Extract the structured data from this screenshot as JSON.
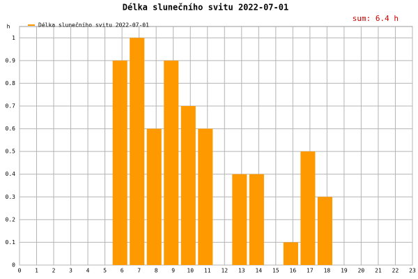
{
  "chart_data": {
    "type": "bar",
    "title": "Délka slunečního svitu 2022-07-01",
    "annotation": "sum: 6.4 h",
    "y_label": "h",
    "x": [
      6,
      7,
      8,
      9,
      10,
      11,
      13,
      14,
      16,
      17,
      18
    ],
    "series": [
      {
        "name": "Délka slunečního svitu 2022-07-01",
        "color": "#ff9900",
        "values": [
          0.9,
          1,
          0.6,
          0.9,
          0.7,
          0.6,
          0.4,
          0.4,
          0.1,
          0.5,
          0.3
        ]
      }
    ],
    "xlim": [
      0,
      23
    ],
    "xticks": [
      0,
      1,
      2,
      3,
      4,
      5,
      6,
      7,
      8,
      9,
      10,
      11,
      12,
      13,
      14,
      15,
      16,
      17,
      18,
      19,
      20,
      21,
      22,
      23
    ],
    "ylim": [
      0,
      1.05
    ],
    "yticks": [
      0,
      0.1,
      0.2,
      0.3,
      0.4,
      0.5,
      0.6,
      0.7,
      0.8,
      0.9,
      1
    ],
    "grid": true
  }
}
